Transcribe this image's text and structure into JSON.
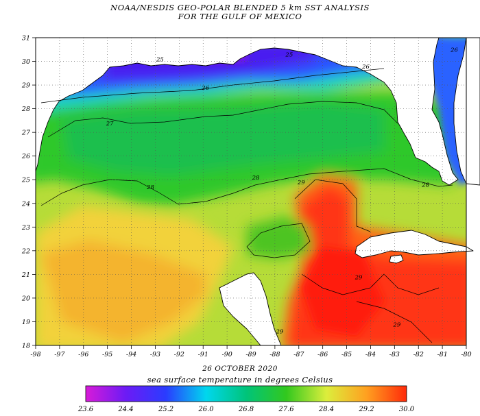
{
  "title": {
    "line1": "NOAA/NESDIS GEO-POLAR BLENDED 5 km SST ANALYSIS",
    "line2": "FOR THE GULF OF MEXICO"
  },
  "date": "26 OCTOBER 2020",
  "map": {
    "lon_range": [
      -98,
      -80
    ],
    "lat_range": [
      18,
      31
    ],
    "lon_ticks": [
      "-98",
      "-97",
      "-96",
      "-95",
      "-94",
      "-93",
      "-92",
      "-91",
      "-90",
      "-89",
      "-88",
      "-87",
      "-86",
      "-85",
      "-84",
      "-83",
      "-82",
      "-81",
      "-80"
    ],
    "lat_ticks": [
      "18",
      "19",
      "20",
      "21",
      "22",
      "23",
      "24",
      "25",
      "26",
      "27",
      "28",
      "29",
      "30",
      "31"
    ],
    "contour_labels": [
      {
        "text": "25",
        "lon": -92.8,
        "lat": 30.0
      },
      {
        "text": "25",
        "lon": -87.4,
        "lat": 30.2
      },
      {
        "text": "26",
        "lon": -84.2,
        "lat": 29.7
      },
      {
        "text": "26",
        "lon": -90.9,
        "lat": 28.8
      },
      {
        "text": "26",
        "lon": -80.5,
        "lat": 30.4
      },
      {
        "text": "27",
        "lon": -94.9,
        "lat": 27.3
      },
      {
        "text": "28",
        "lon": -93.2,
        "lat": 24.6
      },
      {
        "text": "28",
        "lon": -88.8,
        "lat": 25.0
      },
      {
        "text": "28",
        "lon": -81.7,
        "lat": 24.7
      },
      {
        "text": "29",
        "lon": -86.9,
        "lat": 24.8
      },
      {
        "text": "29",
        "lon": -84.5,
        "lat": 20.8
      },
      {
        "text": "29",
        "lon": -82.9,
        "lat": 18.8
      },
      {
        "text": "29",
        "lon": -87.8,
        "lat": 18.5
      }
    ],
    "colors": {
      "land": "#ffffff",
      "contour": "#000000"
    }
  },
  "colorbar": {
    "title": "sea surface temperature in degrees Celsius",
    "labels": [
      "23.6",
      "24.4",
      "25.2",
      "26.0",
      "26.8",
      "27.6",
      "28.4",
      "29.2",
      "30.0"
    ],
    "range": [
      23.6,
      30.0
    ],
    "stops": [
      {
        "value": 23.6,
        "color": "#d81bd8"
      },
      {
        "value": 24.4,
        "color": "#6c1bf5"
      },
      {
        "value": 25.2,
        "color": "#2a3cff"
      },
      {
        "value": 26.0,
        "color": "#00d7ee"
      },
      {
        "value": 26.8,
        "color": "#00c47a"
      },
      {
        "value": 27.6,
        "color": "#32c81e"
      },
      {
        "value": 28.4,
        "color": "#dcee3c"
      },
      {
        "value": 29.2,
        "color": "#ffa020"
      },
      {
        "value": 30.0,
        "color": "#ff2a0a"
      }
    ]
  }
}
